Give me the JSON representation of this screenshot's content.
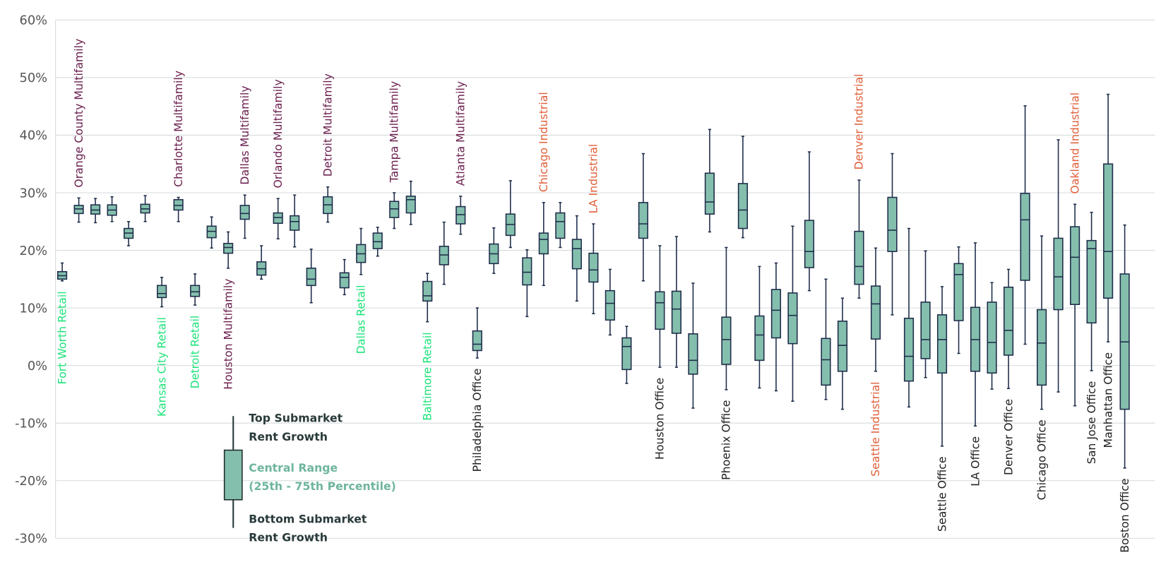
{
  "chart_data": {
    "type": "box",
    "ylim": [
      -30,
      60
    ],
    "yticks": [
      60,
      50,
      40,
      30,
      20,
      10,
      0,
      -10,
      -20,
      -30
    ],
    "ytick_labels": [
      "60%",
      "50%",
      "40%",
      "30%",
      "20%",
      "10%",
      "0%",
      "-10%",
      "-20%",
      "-30%"
    ],
    "grid": true,
    "colors": {
      "box_fill": "#84bfad",
      "box_stroke": "#1f2d4a",
      "Multifamily": "#6b1f4f",
      "Retail": "#1ee37a",
      "Industrial": "#e0603a",
      "Office": "#222222"
    },
    "boxes": [
      [
        14.7,
        15.0,
        15.6,
        16.3,
        17.8
      ],
      [
        24.9,
        26.4,
        27.2,
        27.8,
        29.1
      ],
      [
        24.8,
        26.3,
        27.0,
        27.9,
        29.0
      ],
      [
        25.0,
        26.1,
        27.0,
        27.9,
        29.3
      ],
      [
        20.8,
        22.1,
        23.0,
        23.8,
        25.0
      ],
      [
        25.0,
        26.5,
        27.2,
        28.0,
        29.5
      ],
      [
        10.2,
        11.8,
        12.5,
        13.9,
        15.3
      ],
      [
        25.0,
        27.0,
        27.8,
        28.8,
        29.2
      ],
      [
        10.5,
        12.0,
        12.8,
        13.9,
        15.9
      ],
      [
        20.4,
        22.2,
        23.3,
        24.2,
        25.8
      ],
      [
        16.9,
        19.5,
        20.5,
        21.2,
        23.2
      ],
      [
        22.1,
        25.4,
        26.4,
        27.8,
        29.6
      ],
      [
        15.0,
        15.7,
        16.8,
        18.0,
        20.8
      ],
      [
        22.0,
        24.7,
        25.7,
        26.5,
        29.0
      ],
      [
        20.6,
        23.5,
        25.0,
        26.0,
        29.6
      ],
      [
        10.9,
        13.9,
        15.0,
        16.9,
        20.2
      ],
      [
        24.9,
        26.4,
        27.9,
        29.3,
        31.0
      ],
      [
        12.3,
        13.5,
        15.3,
        16.1,
        18.4
      ],
      [
        15.8,
        17.9,
        19.4,
        21.0,
        23.8
      ],
      [
        19.0,
        20.3,
        21.5,
        23.0,
        24.0
      ],
      [
        23.8,
        25.7,
        27.2,
        28.5,
        30.0
      ],
      [
        24.5,
        26.5,
        28.8,
        29.4,
        32.0
      ],
      [
        7.6,
        11.2,
        12.1,
        14.6,
        16.0
      ],
      [
        14.1,
        17.5,
        19.2,
        20.7,
        24.9
      ],
      [
        22.8,
        24.6,
        26.2,
        27.6,
        29.4
      ],
      [
        1.3,
        2.6,
        3.7,
        6.0,
        10.0
      ],
      [
        16.0,
        17.7,
        19.4,
        21.1,
        23.9
      ],
      [
        20.5,
        22.6,
        24.5,
        26.3,
        32.1
      ],
      [
        8.5,
        14.0,
        16.2,
        18.7,
        20.1
      ],
      [
        13.9,
        19.4,
        21.9,
        23.0,
        28.3
      ],
      [
        20.5,
        22.1,
        25.0,
        26.5,
        28.3
      ],
      [
        11.2,
        16.8,
        20.3,
        21.9,
        26.0
      ],
      [
        9.0,
        14.5,
        16.6,
        19.5,
        24.6
      ],
      [
        5.3,
        7.9,
        10.8,
        13.0,
        16.7
      ],
      [
        -3.1,
        -0.7,
        3.3,
        4.8,
        6.8
      ],
      [
        14.7,
        22.1,
        24.6,
        28.3,
        36.8
      ],
      [
        -0.3,
        6.3,
        10.9,
        12.8,
        20.8
      ],
      [
        -0.3,
        5.6,
        9.8,
        12.9,
        22.4
      ],
      [
        -7.4,
        -1.5,
        0.9,
        5.5,
        14.3
      ],
      [
        23.2,
        26.3,
        28.4,
        33.4,
        41.0
      ],
      [
        -4.2,
        0.2,
        4.5,
        8.4,
        20.5
      ],
      [
        22.2,
        23.8,
        27.0,
        31.6,
        39.8
      ],
      [
        -3.9,
        0.9,
        5.3,
        8.6,
        17.2
      ],
      [
        -4.4,
        4.8,
        9.6,
        13.2,
        17.8
      ],
      [
        -6.2,
        3.8,
        8.7,
        12.6,
        24.2
      ],
      [
        13.0,
        17.0,
        19.8,
        25.2,
        37.1
      ],
      [
        -5.9,
        -3.4,
        1.0,
        4.7,
        15.0
      ],
      [
        -7.6,
        -1.0,
        3.5,
        7.7,
        11.7
      ],
      [
        11.7,
        14.1,
        17.2,
        23.3,
        32.2
      ],
      [
        -1.0,
        4.6,
        10.7,
        13.8,
        20.4
      ],
      [
        8.8,
        19.8,
        23.5,
        29.2,
        36.8
      ],
      [
        -7.2,
        -2.7,
        1.6,
        8.2,
        23.8
      ],
      [
        -2.1,
        1.2,
        4.5,
        11.0,
        19.9
      ],
      [
        -14.0,
        -1.3,
        4.5,
        8.8,
        13.7
      ],
      [
        2.1,
        7.8,
        15.8,
        17.7,
        20.6
      ],
      [
        -10.5,
        -1.0,
        4.5,
        10.1,
        21.3
      ],
      [
        -4.1,
        -1.3,
        4.0,
        11.0,
        14.4
      ],
      [
        -4.0,
        1.8,
        6.1,
        13.6,
        16.7
      ],
      [
        3.7,
        14.8,
        25.3,
        29.9,
        45.1
      ],
      [
        -7.6,
        -3.4,
        3.9,
        9.7,
        22.5
      ],
      [
        -4.6,
        9.7,
        15.4,
        22.1,
        39.2
      ],
      [
        -7.0,
        10.6,
        18.8,
        24.1,
        28.0
      ],
      [
        -0.9,
        7.4,
        20.3,
        21.7,
        26.6
      ],
      [
        4.1,
        11.7,
        19.8,
        35.0,
        47.1
      ],
      [
        -17.8,
        -7.6,
        4.1,
        15.9,
        24.4
      ]
    ],
    "labels": [
      {
        "text": "Fort Worth Retail",
        "box": 0,
        "pos": "below",
        "type": "Retail"
      },
      {
        "text": "Orange County Multifamily",
        "box": 1,
        "pos": "above",
        "type": "Multifamily"
      },
      {
        "text": "Kansas City Retail",
        "box": 6,
        "pos": "below",
        "type": "Retail"
      },
      {
        "text": "Charlotte Multifamily",
        "box": 7,
        "pos": "above",
        "type": "Multifamily"
      },
      {
        "text": "Detroit Retail",
        "box": 8,
        "pos": "below",
        "type": "Retail"
      },
      {
        "text": "Houston Multifamily",
        "box": 10,
        "pos": "below",
        "type": "Multifamily"
      },
      {
        "text": "Dallas Multifamily",
        "box": 11,
        "pos": "above",
        "type": "Multifamily"
      },
      {
        "text": "Orlando Multifamily",
        "box": 13,
        "pos": "above",
        "type": "Multifamily"
      },
      {
        "text": "Detroit Multifamily",
        "box": 16,
        "pos": "above",
        "type": "Multifamily"
      },
      {
        "text": "Dallas Retail",
        "box": 18,
        "pos": "below",
        "type": "Retail"
      },
      {
        "text": "Tampa Multifamily",
        "box": 20,
        "pos": "above",
        "type": "Multifamily"
      },
      {
        "text": "Baltimore Retail",
        "box": 22,
        "pos": "below",
        "type": "Retail"
      },
      {
        "text": "Atlanta Multifamily",
        "box": 24,
        "pos": "above",
        "type": "Multifamily"
      },
      {
        "text": "Philadelphia Office",
        "box": 25,
        "pos": "below",
        "type": "Office"
      },
      {
        "text": "Chicago Industrial",
        "box": 29,
        "pos": "above",
        "type": "Industrial"
      },
      {
        "text": "LA Industrial",
        "box": 32,
        "pos": "above",
        "type": "Industrial"
      },
      {
        "text": "Houston Office",
        "box": 36,
        "pos": "below",
        "type": "Office"
      },
      {
        "text": "Phoenix Office",
        "box": 40,
        "pos": "below",
        "type": "Office"
      },
      {
        "text": "Denver Industrial",
        "box": 48,
        "pos": "above",
        "type": "Industrial"
      },
      {
        "text": "Seattle Industrial",
        "box": 49,
        "pos": "below",
        "type": "Industrial"
      },
      {
        "text": "Seattle Office",
        "box": 53,
        "pos": "below",
        "type": "Office"
      },
      {
        "text": "LA Office",
        "box": 55,
        "pos": "below",
        "type": "Office"
      },
      {
        "text": "Denver Office",
        "box": 57,
        "pos": "below",
        "type": "Office"
      },
      {
        "text": "Chicago Office",
        "box": 59,
        "pos": "below",
        "type": "Office"
      },
      {
        "text": "Oakland Industrial",
        "box": 61,
        "pos": "above",
        "type": "Industrial"
      },
      {
        "text": "San Jose Office",
        "box": 62,
        "pos": "below",
        "type": "Office"
      },
      {
        "text": "Manhattan Office",
        "box": 63,
        "pos": "below",
        "type": "Office"
      },
      {
        "text": "Boston Office",
        "box": 64,
        "pos": "below",
        "type": "Office"
      }
    ],
    "legend": {
      "top_line1": "Top Submarket",
      "top_line2": "Rent Growth",
      "mid_line1": "Central Range",
      "mid_line2": "(25th - 75th Percentile)",
      "bottom_line1": "Bottom Submarket",
      "bottom_line2": "Rent Growth",
      "mid_color": "#6fb59e"
    }
  }
}
